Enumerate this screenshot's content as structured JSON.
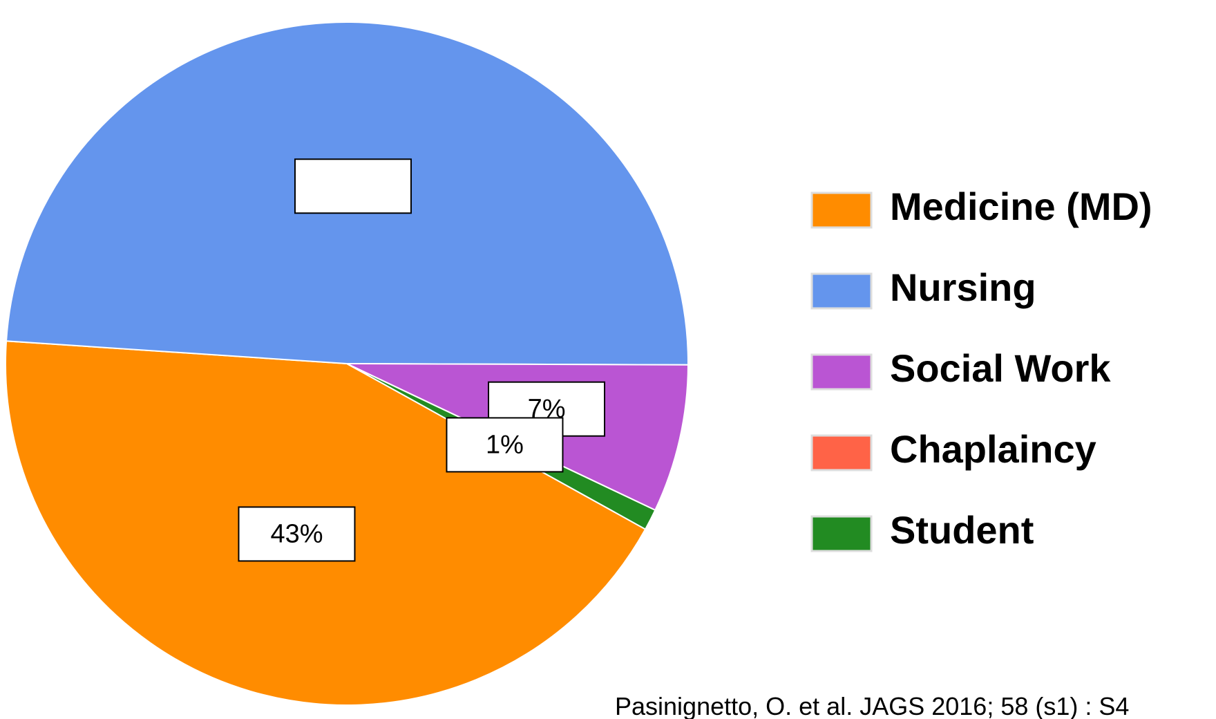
{
  "chart_data": {
    "type": "pie",
    "categories": [
      "Medicine (MD)",
      "Nursing",
      "Social Work",
      "Chaplaincy",
      "Student"
    ],
    "values": [
      43,
      49,
      7,
      0,
      1
    ],
    "value_labels": [
      "43%",
      null,
      "7%",
      null,
      "1%"
    ],
    "colors": [
      "#ff8c00",
      "#6495ed",
      "#ba55d3",
      "#ff6347",
      "#228b22"
    ],
    "legend": "right",
    "source": "Pasinignetto, O. et al. JAGS 2016; 58 (s1) : S4"
  }
}
